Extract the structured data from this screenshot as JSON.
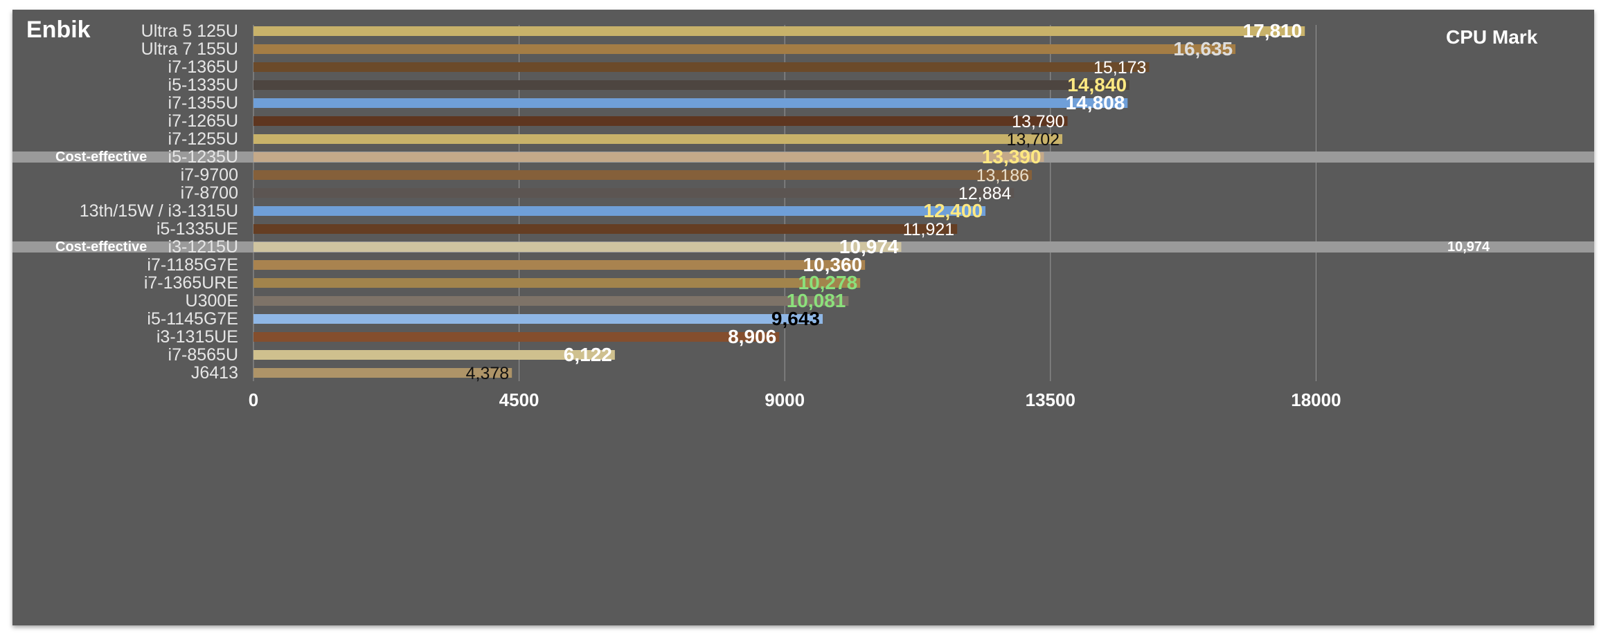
{
  "brand": "Enbik",
  "chart_data": {
    "type": "bar",
    "orientation": "horizontal",
    "title": "",
    "xlabel": "",
    "ylabel": "",
    "legend_title": "CPU Mark",
    "xlim": [
      0,
      22500
    ],
    "x_ticks": [
      0,
      4500,
      9000,
      13500,
      18000
    ],
    "grid": "vertical",
    "categories": [
      "Ultra 5 125U",
      "Ultra 7 155U",
      "i7-1365U",
      "i5-1335U",
      "i7-1355U",
      "i7-1265U",
      "i7-1255U",
      "i5-1235U",
      "i7-9700",
      "i7-8700",
      "13th/15W / i3-1315U",
      "i5-1335UE",
      "i3-1215U",
      "i7-1185G7E",
      "i7-1365URE",
      "U300E",
      "i5-1145G7E",
      "i3-1315UE",
      "i7-8565U",
      "J6413"
    ],
    "values": [
      17810,
      16635,
      15173,
      14840,
      14808,
      13790,
      13702,
      13390,
      13186,
      12884,
      12400,
      11921,
      10974,
      10360,
      10278,
      10081,
      9643,
      8906,
      6122,
      4378
    ],
    "value_labels": [
      "17,810",
      "16,635",
      "15,173",
      "14,840",
      "14,808",
      "13,790",
      "13,702",
      "13,390",
      "13,186",
      "12,884",
      "12,400",
      "11,921",
      "10,974",
      "10,360",
      "10,278",
      "10,081",
      "9,643",
      "8,906",
      "6,122",
      "4,378"
    ],
    "bar_colors": [
      "#c8b26a",
      "#a47d45",
      "#6b4a2a",
      "#4d4540",
      "#6f9fd8",
      "#5e3620",
      "#c8b26a",
      "#c4a989",
      "#85603a",
      "#5c5552",
      "#6f9fd8",
      "#653e23",
      "#cfc4a0",
      "#a9834f",
      "#a2844c",
      "#7e7368",
      "#8fb7e6",
      "#844e2d",
      "#cfc08e",
      "#ae9468"
    ],
    "label_colors": [
      "#ffffff",
      "#dddddd",
      "#ffffff",
      "#ffe882",
      "#ffffff",
      "#ffffff",
      "#111111",
      "#ffe882",
      "#e9dfcc",
      "#ffffff",
      "#ffe882",
      "#ffffff",
      "#ffffff",
      "#ffffff",
      "#8be07c",
      "#8be07c",
      "#000000",
      "#ffffff",
      "#ffffff",
      "#111111"
    ],
    "label_bold": [
      true,
      true,
      false,
      true,
      true,
      false,
      false,
      true,
      false,
      false,
      true,
      false,
      true,
      true,
      true,
      true,
      true,
      true,
      true,
      false
    ],
    "highlight_rows": [
      {
        "category": "i5-1235U",
        "note": "Cost-effective",
        "right_value": ""
      },
      {
        "category": "i3-1215U",
        "note": "Cost-effective",
        "right_value": "10,974"
      }
    ]
  }
}
